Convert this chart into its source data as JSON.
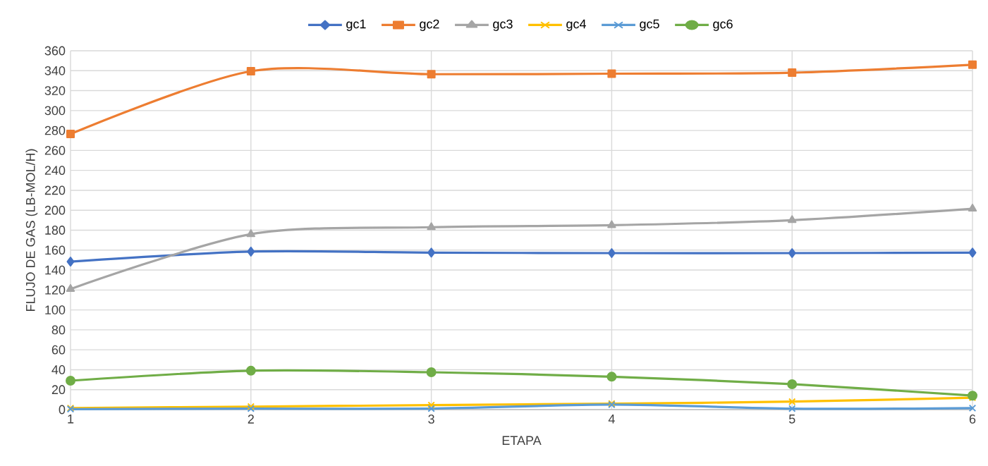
{
  "chart_data": {
    "type": "line",
    "xlabel": "ETAPA",
    "ylabel": "FLUJO DE GAS (LB-MOL/H)",
    "x": [
      1,
      2,
      3,
      4,
      5,
      6
    ],
    "xlim": [
      1,
      6
    ],
    "xticks": [
      1,
      2,
      3,
      4,
      5,
      6
    ],
    "ylim": [
      0,
      360
    ],
    "yticks": [
      0,
      20,
      40,
      60,
      80,
      100,
      120,
      140,
      160,
      180,
      200,
      220,
      240,
      260,
      280,
      300,
      320,
      340,
      360
    ],
    "grid": true,
    "legend": "top",
    "line_style": "solid",
    "series": [
      {
        "name": "gc1",
        "color": "#4472c4",
        "marker": "diamond",
        "values": [
          148.5,
          158.5,
          157.5,
          157,
          157,
          157.5
        ]
      },
      {
        "name": "gc2",
        "color": "#ed7d31",
        "marker": "square",
        "values": [
          276.5,
          339.5,
          336.5,
          337,
          338,
          346
        ]
      },
      {
        "name": "gc3",
        "color": "#a5a5a5",
        "marker": "triangle",
        "values": [
          121,
          176,
          183,
          185,
          190,
          201.5
        ]
      },
      {
        "name": "gc4",
        "color": "#ffc000",
        "marker": "cross",
        "values": [
          1.5,
          3,
          4.5,
          6,
          8,
          12
        ]
      },
      {
        "name": "gc5",
        "color": "#5b9bd5",
        "marker": "cross",
        "values": [
          0.5,
          1,
          1,
          5,
          1,
          1.5
        ]
      },
      {
        "name": "gc6",
        "color": "#70ad47",
        "marker": "circle",
        "values": [
          29,
          39,
          37.5,
          33,
          25.5,
          14
        ]
      }
    ]
  }
}
